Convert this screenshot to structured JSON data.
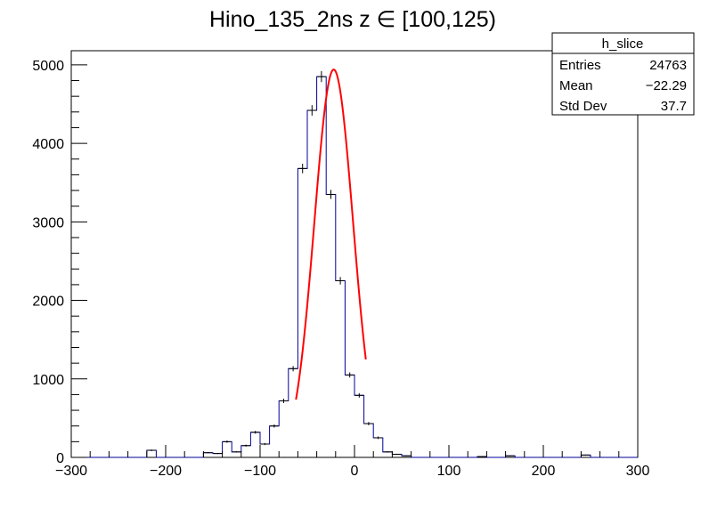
{
  "chart_data": {
    "type": "bar",
    "title": "Hino_135_2ns z  ∈ [100,125)",
    "xlabel": "",
    "ylabel": "",
    "xlim": [
      -300,
      300
    ],
    "ylim": [
      0,
      5180
    ],
    "x_ticks": [
      -300,
      -200,
      -100,
      0,
      100,
      200,
      300
    ],
    "y_ticks": [
      0,
      1000,
      2000,
      3000,
      4000,
      5000
    ],
    "grid": false,
    "legend": "none",
    "bin_width": 10,
    "bin_low_edges": [
      -300,
      -290,
      -280,
      -270,
      -260,
      -250,
      -240,
      -230,
      -220,
      -210,
      -200,
      -190,
      -180,
      -170,
      -160,
      -150,
      -140,
      -130,
      -120,
      -110,
      -100,
      -90,
      -80,
      -70,
      -60,
      -50,
      -40,
      -30,
      -20,
      -10,
      0,
      10,
      20,
      30,
      40,
      50,
      60,
      70,
      80,
      90,
      100,
      110,
      120,
      130,
      140,
      150,
      160,
      170,
      180,
      190,
      200,
      210,
      220,
      230,
      240,
      250,
      260,
      270,
      280,
      290
    ],
    "values": [
      0,
      0,
      0,
      0,
      0,
      0,
      0,
      0,
      90,
      0,
      0,
      0,
      0,
      0,
      60,
      50,
      200,
      70,
      150,
      320,
      170,
      400,
      720,
      1130,
      3680,
      4420,
      4850,
      3350,
      2250,
      1050,
      790,
      430,
      250,
      70,
      40,
      20,
      0,
      0,
      0,
      0,
      0,
      0,
      0,
      10,
      0,
      0,
      20,
      0,
      0,
      0,
      0,
      0,
      0,
      0,
      30,
      0,
      0,
      0,
      0,
      0
    ],
    "fit_curve": {
      "function": "gaussian",
      "amplitude": 4940,
      "mean": -22,
      "sigma": 20.5,
      "x_range": [
        -62,
        12
      ],
      "color": "#ff0000"
    },
    "stats_box": {
      "title": "h_slice",
      "rows": [
        {
          "label": "Entries",
          "value": "24763"
        },
        {
          "label": "Mean",
          "value": "−22.29"
        },
        {
          "label": "Std Dev",
          "value": "37.7"
        }
      ]
    },
    "histogram_color": "#000099"
  }
}
